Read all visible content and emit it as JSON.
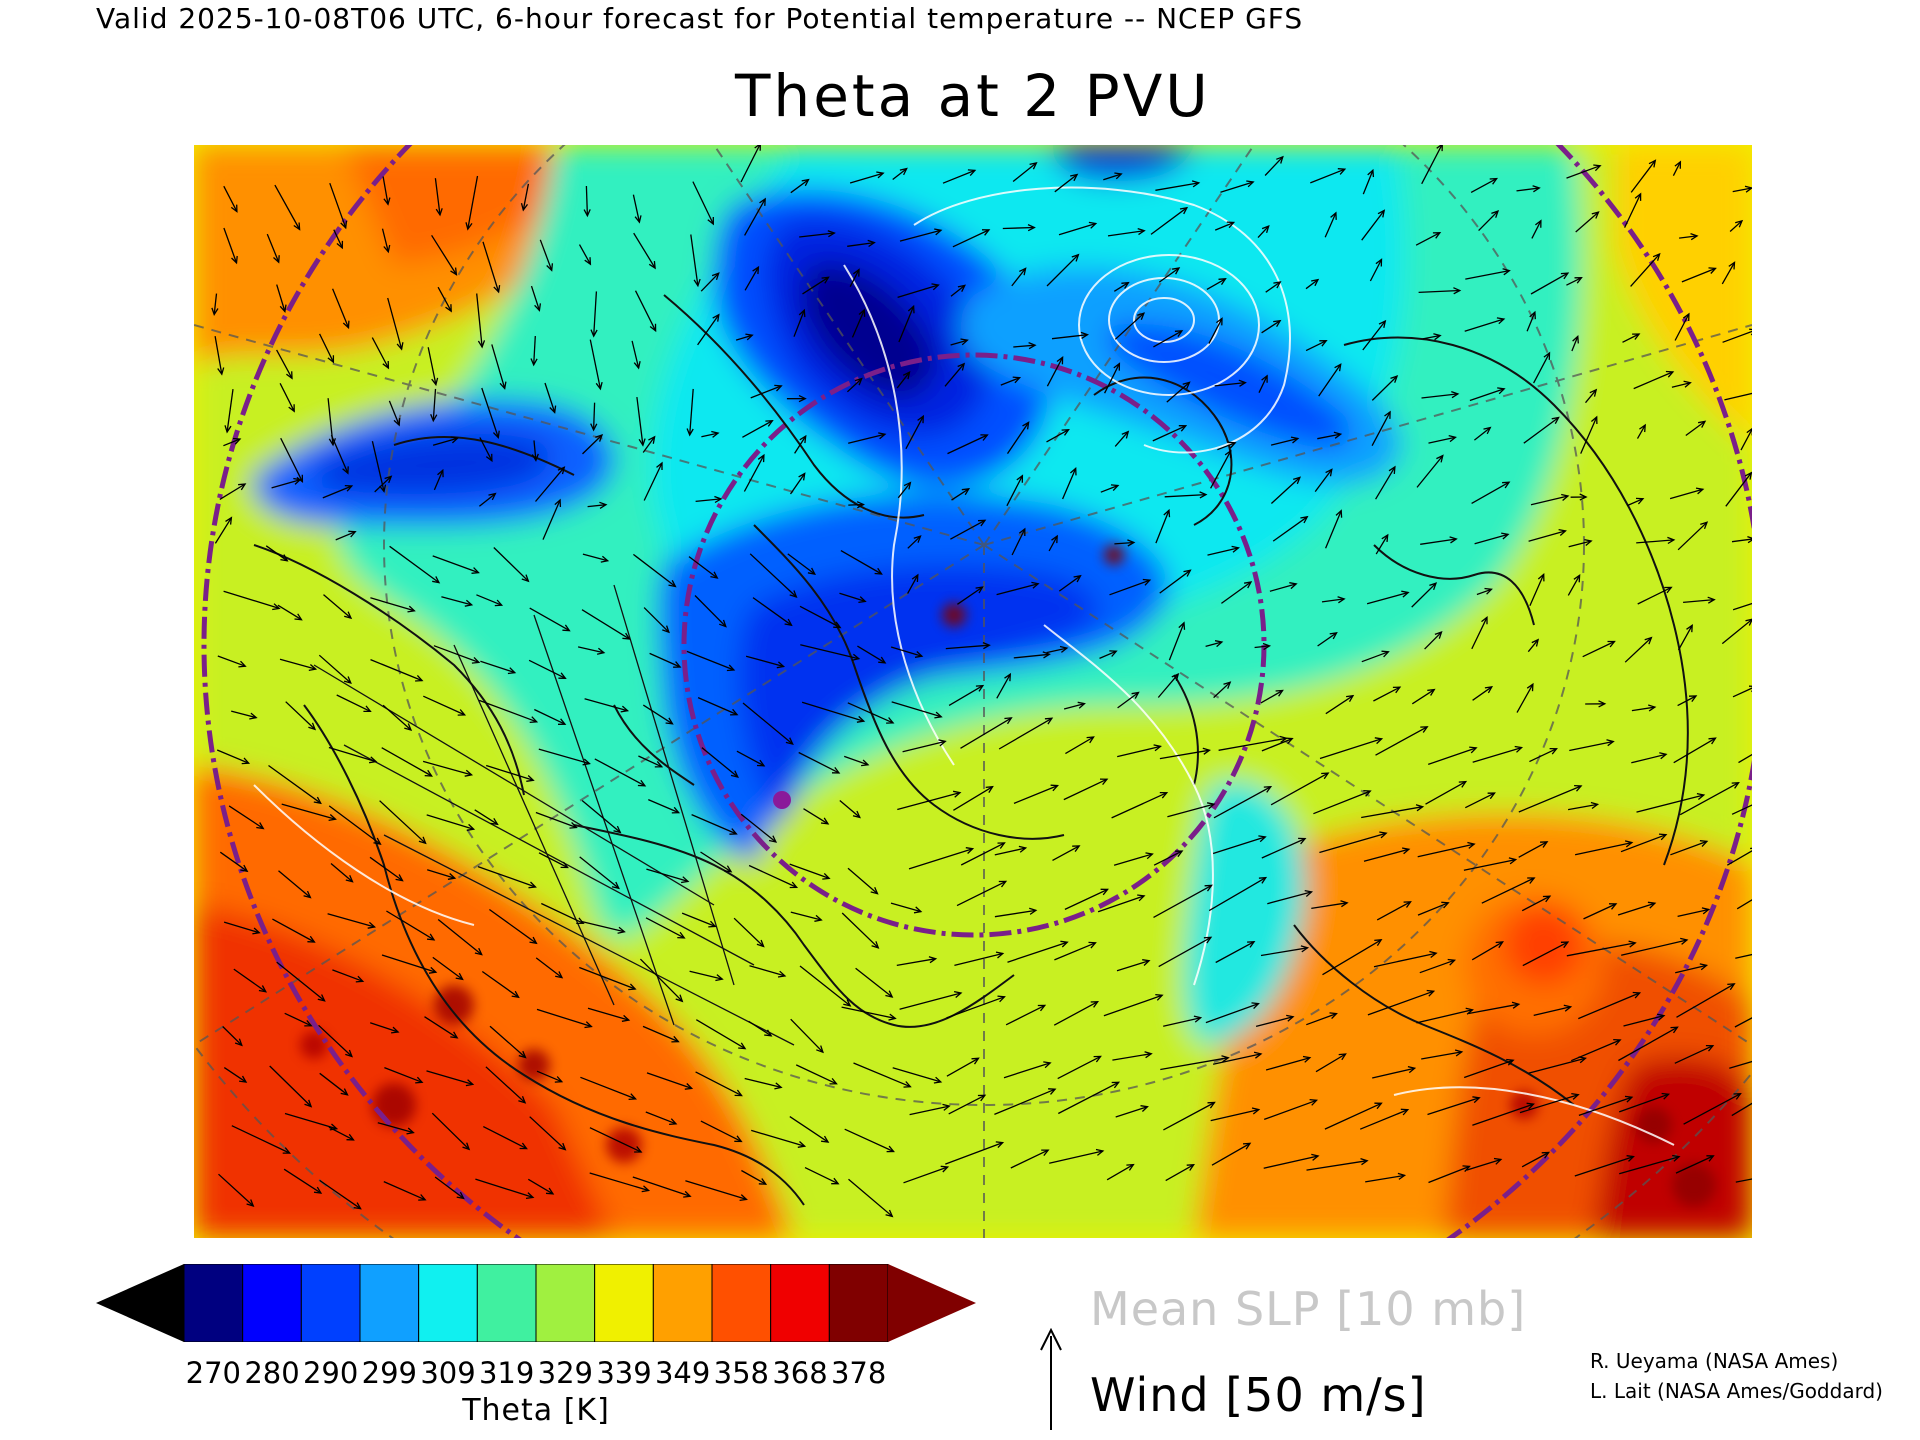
{
  "header": {
    "valid_line": "Valid 2025-10-08T06 UTC, 6-hour forecast for Potential temperature -- NCEP GFS",
    "title": "Theta at 2 PVU"
  },
  "map": {
    "projection": "polar stereographic",
    "variable": "Potential temperature at 2 PVU",
    "features": [
      "theta-shading",
      "coastlines",
      "political-boundaries",
      "latitude-longitude-grid",
      "wind-vectors",
      "mean-slp-contours",
      "marker-point"
    ]
  },
  "colorbar": {
    "ticks": [
      "270",
      "280",
      "290",
      "299",
      "309",
      "319",
      "329",
      "339",
      "349",
      "358",
      "368",
      "378"
    ],
    "colors": [
      "#000080",
      "#0000ff",
      "#0040ff",
      "#10a0ff",
      "#10f0f0",
      "#40f0a0",
      "#a0f040",
      "#f0f000",
      "#ffa000",
      "#ff5000",
      "#f00000",
      "#800000"
    ],
    "under_color": "#000000",
    "over_color": "#800000",
    "label": "Theta [K]"
  },
  "legend": {
    "slp": "Mean SLP [10 mb]",
    "wind": "Wind [50 m/s]",
    "slp_color": "#c8c8c8"
  },
  "credits": [
    "R. Ueyama (NASA Ames)",
    "L. Lait (NASA Ames/Goddard)"
  ]
}
